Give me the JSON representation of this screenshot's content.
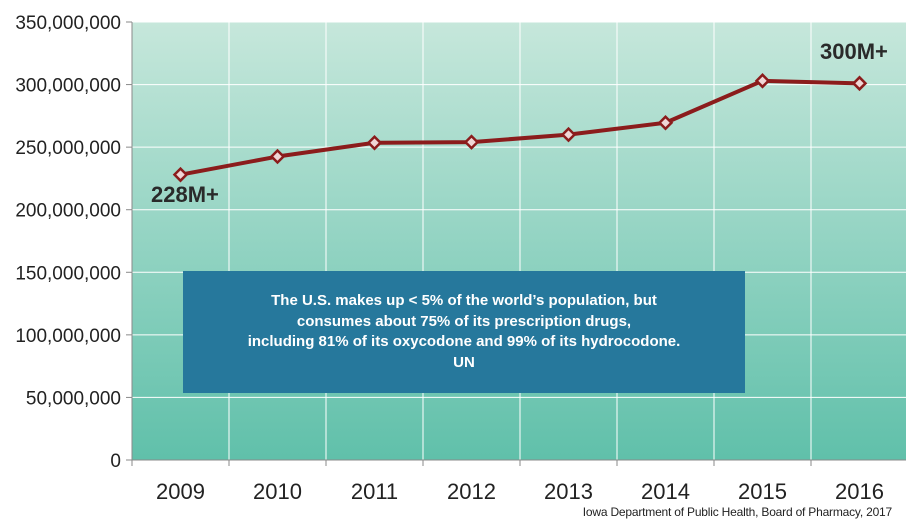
{
  "chart_data": {
    "type": "line",
    "categories": [
      "2009",
      "2010",
      "2011",
      "2012",
      "2013",
      "2014",
      "2015",
      "2016"
    ],
    "series": [
      {
        "values": [
          228000000,
          242500000,
          253500000,
          254000000,
          260000000,
          269500000,
          303000000,
          301000000
        ]
      }
    ],
    "ylim": [
      0,
      350000000
    ],
    "yticks": [
      "0",
      "50,000,000",
      "100,000,000",
      "150,000,000",
      "200,000,000",
      "250,000,000",
      "300,000,000",
      "350,000,000"
    ],
    "title": "",
    "xlabel": "",
    "ylabel": "",
    "grid": true,
    "line_color": "#8b1c1c",
    "plot_gradient_top": "#c6e7db",
    "plot_gradient_bottom": "#60c0aa",
    "annotations": {
      "start_label": "228M+",
      "end_label": "300M+"
    }
  },
  "info_box": {
    "lines": [
      "The U.S. makes up < 5% of the world’s population, but",
      "consumes about 75% of its prescription drugs,",
      "including 81% of its oxycodone and 99% of its hydrocodone.",
      "UN"
    ],
    "color": "#26789c"
  },
  "source": "Iowa Department of Public Health, Board of Pharmacy, 2017"
}
